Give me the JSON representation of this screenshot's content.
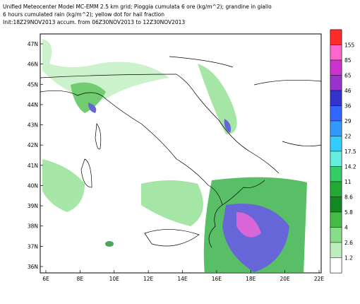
{
  "header": {
    "lines": [
      "Unified Meteocenter Model MC-EMM 2.5 km grid; Pioggia cumulata 6 ore (kg/m^2); grandine in giallo",
      "6 hours cumulated rain (kg/m^2); yellow dot for hail fraction",
      "Init:18Z29NOV2013 accum. from 06Z30NOV2013 to 12Z30NOV2013"
    ]
  },
  "map": {
    "lat_labels": [
      "47N",
      "46N",
      "45N",
      "44N",
      "43N",
      "42N",
      "41N",
      "40N",
      "39N",
      "38N",
      "37N",
      "36N"
    ],
    "lon_labels": [
      "6E",
      "8E",
      "10E",
      "12E",
      "14E",
      "16E",
      "18E",
      "20E",
      "22E"
    ]
  },
  "colorbar": {
    "colors": [
      "#ff2a2a",
      "#ff66cc",
      "#cc33cc",
      "#9933cc",
      "#3333cc",
      "#3366ff",
      "#3399ff",
      "#33ccff",
      "#66eedd",
      "#33cc66",
      "#22aa33",
      "#118822",
      "#44bb44",
      "#88dd88",
      "#bbeebb",
      "#ffffff"
    ],
    "labels": [
      "155",
      "85",
      "65",
      "46",
      "36",
      "29",
      "22",
      "17.5",
      "14.2",
      "11",
      "8.6",
      "5.8",
      "4",
      "2.6",
      "1.2"
    ]
  }
}
